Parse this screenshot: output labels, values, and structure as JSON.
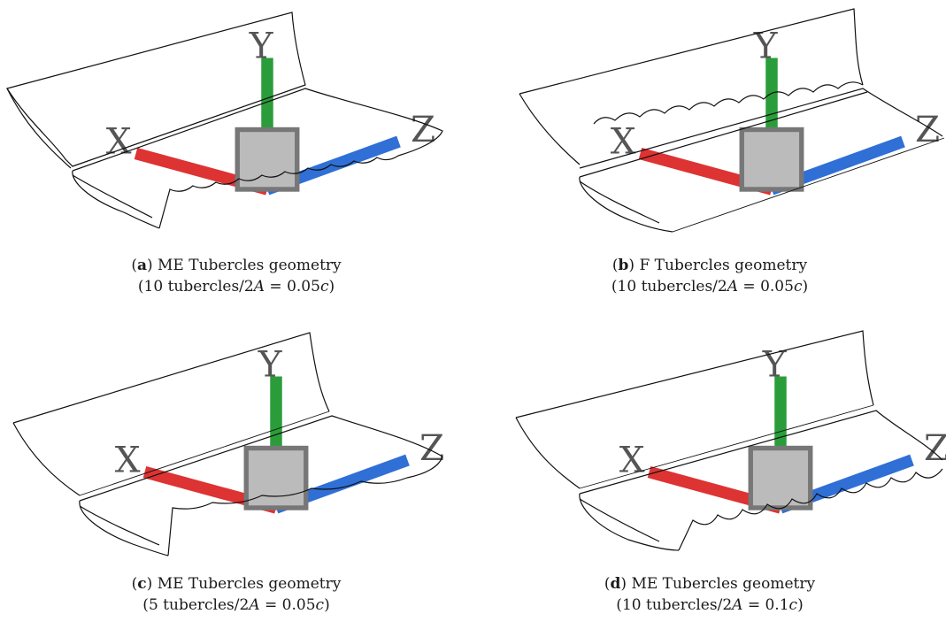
{
  "panels": [
    {
      "label": "a",
      "title": "ME Tubercles geometry",
      "count": "10",
      "amp": "0.05"
    },
    {
      "label": "b",
      "title": "F Tubercles geometry",
      "count": "10",
      "amp": "0.05"
    },
    {
      "label": "c",
      "title": "ME Tubercles geometry",
      "count": "5",
      "amp": "0.05"
    },
    {
      "label": "d",
      "title": "ME Tubercles geometry",
      "count": "10",
      "amp": "0.1"
    }
  ],
  "common": {
    "open_paren": "(",
    "close_paren": ")",
    "tubercles_word": "tubercles/",
    "two": "2",
    "A": "A",
    "equals": " = ",
    "c": "c",
    "axis_x": "X",
    "axis_y": "Y",
    "axis_z": "Z"
  }
}
